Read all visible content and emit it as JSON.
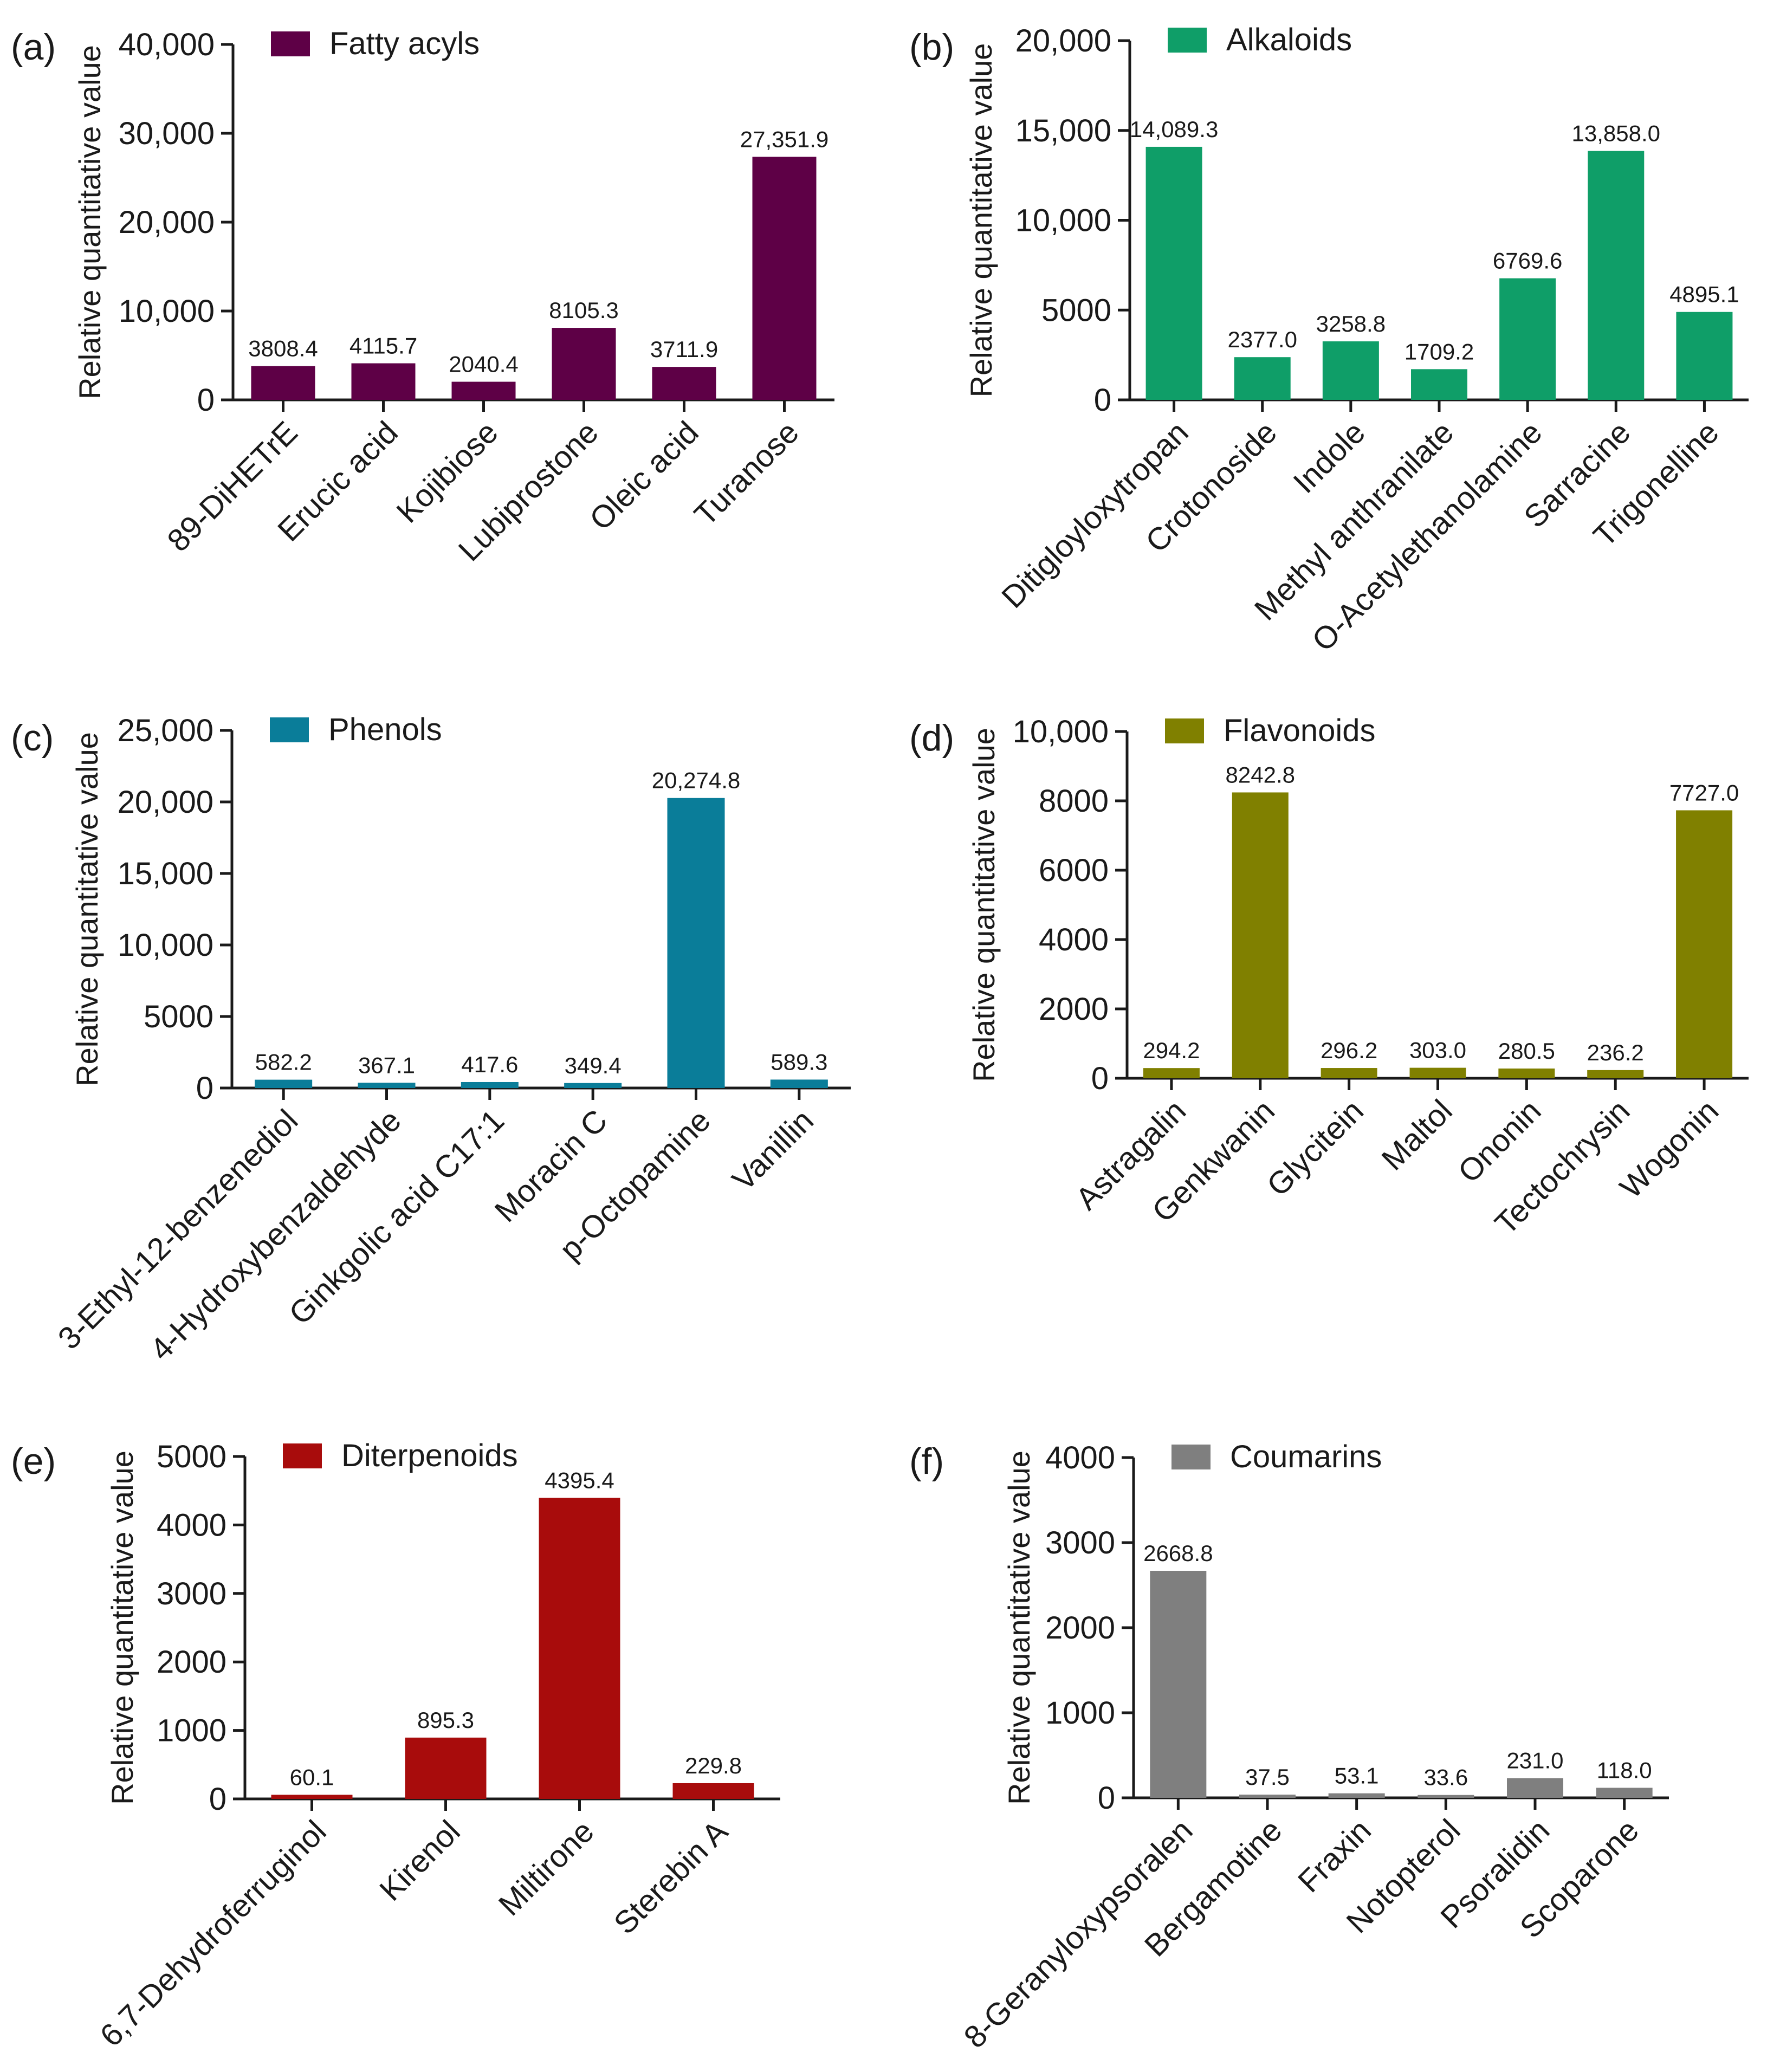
{
  "ylabel": "Relative quantitative value",
  "chart_data": [
    {
      "panel": "(a)",
      "type": "bar",
      "series_name": "Fatty acyls",
      "color": "#5e0046",
      "categories": [
        "89-DiHETrE",
        "Erucic acid",
        "Kojibiose",
        "Lubiprostone",
        "Oleic acid",
        "Turanose"
      ],
      "values": [
        3808.4,
        4115.7,
        2040.4,
        8105.3,
        3711.9,
        27351.9
      ],
      "value_labels": [
        "3808.4",
        "4115.7",
        "2040.4",
        "8105.3",
        "3711.9",
        "27,351.9"
      ],
      "ylim": [
        0,
        40000
      ],
      "yticks": [
        0,
        10000,
        20000,
        30000,
        40000
      ],
      "ytick_labels": [
        "0",
        "10,000",
        "20,000",
        "30,000",
        "40,000"
      ],
      "ylabel": "Relative quantitative value",
      "legend": "top-left",
      "grid": false
    },
    {
      "panel": "(b)",
      "type": "bar",
      "series_name": "Alkaloids",
      "color": "#0f9e68",
      "categories": [
        "Ditigloyloxytropan",
        "Crotonoside",
        "Indole",
        "Methyl anthranilate",
        "O-Acetylethanolamine",
        "Sarracine",
        "Trigonelline"
      ],
      "values": [
        14089.3,
        2377.0,
        3258.8,
        1709.2,
        6769.6,
        13858.0,
        4895.1
      ],
      "value_labels": [
        "14,089.3",
        "2377.0",
        "3258.8",
        "1709.2",
        "6769.6",
        "13,858.0",
        "4895.1"
      ],
      "ylim": [
        0,
        20000
      ],
      "yticks": [
        0,
        5000,
        10000,
        15000,
        20000
      ],
      "ytick_labels": [
        "0",
        "5000",
        "10,000",
        "15,000",
        "20,000"
      ],
      "ylabel": "Relative quantitative value",
      "legend": "top-left",
      "grid": false
    },
    {
      "panel": "(c)",
      "type": "bar",
      "series_name": "Phenols",
      "color": "#0a7d99",
      "categories": [
        "3-Ethyl-12-benzenediol",
        "4-Hydroxybenzaldehyde",
        "Ginkgolic acid C17:1",
        "Moracin C",
        "p-Octopamine",
        "Vanillin"
      ],
      "values": [
        582.2,
        367.1,
        417.6,
        349.4,
        20274.8,
        589.3
      ],
      "value_labels": [
        "582.2",
        "367.1",
        "417.6",
        "349.4",
        "20,274.8",
        "589.3"
      ],
      "ylim": [
        0,
        25000
      ],
      "yticks": [
        0,
        5000,
        10000,
        15000,
        20000,
        25000
      ],
      "ytick_labels": [
        "0",
        "5000",
        "10,000",
        "15,000",
        "20,000",
        "25,000"
      ],
      "ylabel": "Relative quantitative value",
      "legend": "top-left",
      "grid": false
    },
    {
      "panel": "(d)",
      "type": "bar",
      "series_name": "Flavonoids",
      "color": "#808000",
      "categories": [
        "Astragalin",
        "Genkwanin",
        "Glycitein",
        "Maltol",
        "Ononin",
        "Tectochrysin",
        "Wogonin"
      ],
      "values": [
        294.2,
        8242.8,
        296.2,
        303.0,
        280.5,
        236.2,
        7727.0
      ],
      "value_labels": [
        "294.2",
        "8242.8",
        "296.2",
        "303.0",
        "280.5",
        "236.2",
        "7727.0"
      ],
      "ylim": [
        0,
        10000
      ],
      "yticks": [
        0,
        2000,
        4000,
        6000,
        8000,
        10000
      ],
      "ytick_labels": [
        "0",
        "2000",
        "4000",
        "6000",
        "8000",
        "10,000"
      ],
      "ylabel": "Relative quantitative value",
      "legend": "top-left",
      "grid": false
    },
    {
      "panel": "(e)",
      "type": "bar",
      "series_name": "Diterpenoids",
      "color": "#a80c0c",
      "categories": [
        "6,7-Dehydroferruginol",
        "Kirenol",
        "Miltirone",
        "Sterebin A"
      ],
      "values": [
        60.1,
        895.3,
        4395.4,
        229.8
      ],
      "value_labels": [
        "60.1",
        "895.3",
        "4395.4",
        "229.8"
      ],
      "ylim": [
        0,
        5000
      ],
      "yticks": [
        0,
        1000,
        2000,
        3000,
        4000,
        5000
      ],
      "ytick_labels": [
        "0",
        "1000",
        "2000",
        "3000",
        "4000",
        "5000"
      ],
      "ylabel": "Relative quantitative value",
      "legend": "top-left",
      "grid": false
    },
    {
      "panel": "(f)",
      "type": "bar",
      "series_name": "Coumarins",
      "color": "#7f7f7f",
      "categories": [
        "8-Geranyloxypsoralen",
        "Bergamotine",
        "Fraxin",
        "Notopterol",
        "Psoralidin",
        "Scoparone"
      ],
      "values": [
        2668.8,
        37.5,
        53.1,
        33.6,
        231.0,
        118.0
      ],
      "value_labels": [
        "2668.8",
        "37.5",
        "53.1",
        "33.6",
        "231.0",
        "118.0"
      ],
      "ylim": [
        0,
        4000
      ],
      "yticks": [
        0,
        1000,
        2000,
        3000,
        4000
      ],
      "ytick_labels": [
        "0",
        "1000",
        "2000",
        "3000",
        "4000"
      ],
      "ylabel": "Relative quantitative value",
      "legend": "top-left",
      "grid": false
    }
  ]
}
